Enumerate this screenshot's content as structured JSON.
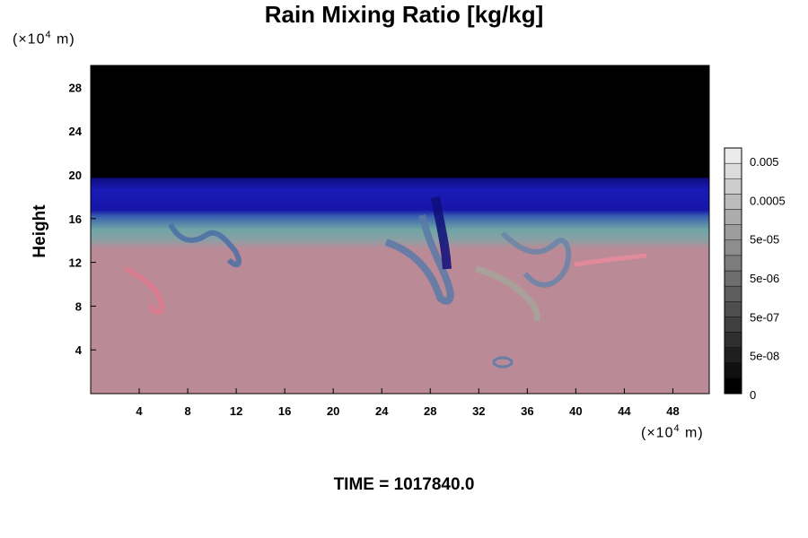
{
  "chart_data": {
    "type": "heatmap",
    "title": "Rain Mixing Ratio [kg/kg]",
    "ylabel": "Height",
    "xlabel": "",
    "unit_y": "(×10",
    "unit_x": "(×10",
    "unit_exp": "4",
    "unit_suffix": " m)",
    "xlim": [
      0,
      51
    ],
    "ylim": [
      0,
      30
    ],
    "x_ticks": [
      4,
      8,
      12,
      16,
      20,
      24,
      28,
      32,
      36,
      40,
      44,
      48
    ],
    "y_ticks": [
      4,
      8,
      12,
      16,
      20,
      24,
      28
    ],
    "colorbar_labels": [
      "0.005",
      "0.0005",
      "5e-05",
      "5e-06",
      "5e-07",
      "5e-08",
      "0"
    ],
    "footer": "TIME = 1017840.0",
    "layers": [
      {
        "range": [
          0,
          13.5
        ],
        "color": "#bb8a97",
        "description": "near-zero rain"
      },
      {
        "range": [
          13.5,
          16.5
        ],
        "color": "#6fa5a5",
        "description": "transition"
      },
      {
        "range": [
          16.5,
          20
        ],
        "color": "#1a1ab4",
        "description": "upper band"
      },
      {
        "range": [
          20,
          30
        ],
        "color": "#000000",
        "description": "zero"
      }
    ]
  }
}
